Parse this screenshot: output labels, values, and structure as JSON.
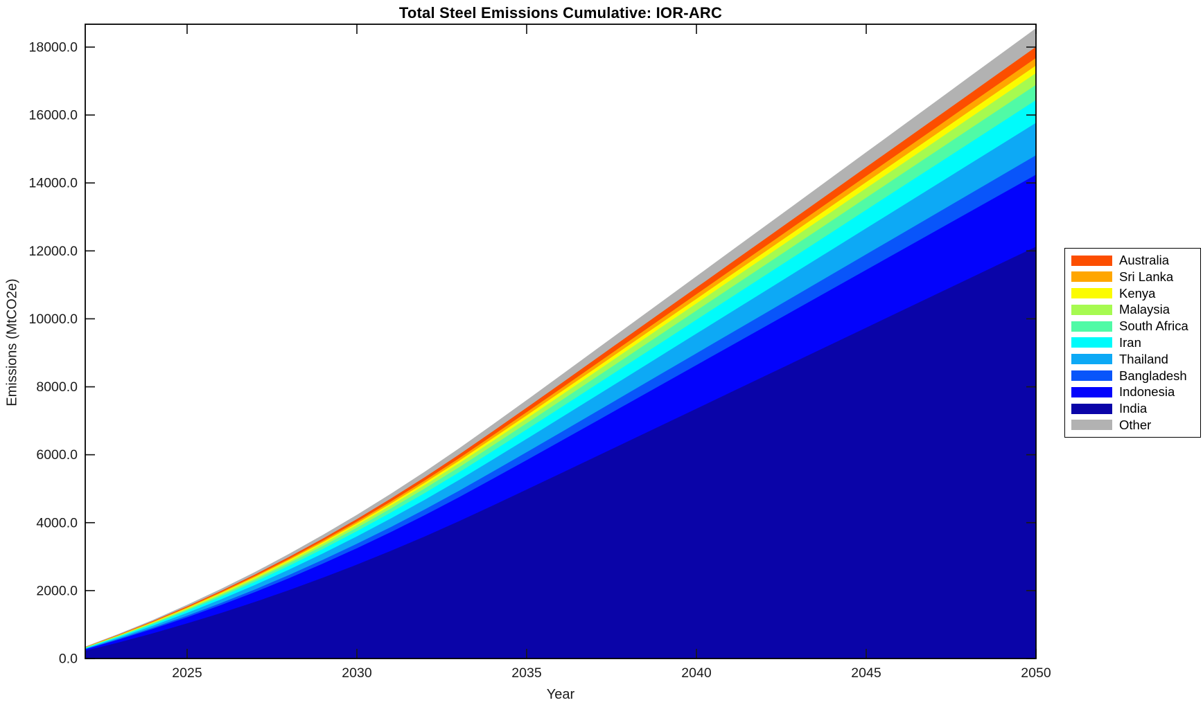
{
  "figure": {
    "title": "Total Steel Emissions Cumulative: IOR-ARC",
    "xlabel": "Year",
    "ylabel": "Emissions (MtCO2e)"
  },
  "chart_data": {
    "type": "area",
    "stacked": true,
    "title": "Total Steel Emissions Cumulative: IOR-ARC",
    "xlabel": "Year",
    "ylabel": "Emissions (MtCO2e)",
    "xlim": [
      2022,
      2050
    ],
    "ylim": [
      0,
      18672
    ],
    "grid": false,
    "legend_position": "right-outside",
    "xticks": [
      2025,
      2030,
      2035,
      2040,
      2045,
      2050
    ],
    "ytick_labels": [
      "0.0",
      "2000.0",
      "4000.0",
      "6000.0",
      "8000.0",
      "10000.0",
      "12000.0",
      "14000.0",
      "16000.0",
      "18000.0"
    ],
    "ytick_values": [
      0,
      2000,
      4000,
      6000,
      8000,
      10000,
      12000,
      14000,
      16000,
      18000
    ],
    "legend_order_top_to_bottom": [
      "Australia",
      "Sri Lanka",
      "Kenya",
      "Malaysia",
      "South Africa",
      "Iran",
      "Thailand",
      "Bangladesh",
      "Indonesia",
      "India",
      "Other"
    ],
    "years": [
      2022,
      2023,
      2024,
      2025,
      2026,
      2027,
      2028,
      2029,
      2030,
      2031,
      2032,
      2033,
      2034,
      2035,
      2036,
      2037,
      2038,
      2039,
      2040,
      2041,
      2042,
      2043,
      2044,
      2045,
      2046,
      2047,
      2048,
      2049,
      2050
    ],
    "series_bottom_to_top": [
      {
        "name": "India",
        "color": "#0A04A8",
        "values": [
          229,
          477,
          745,
          1033,
          1340,
          1666,
          2013,
          2379,
          2764,
          3170,
          3594,
          4039,
          4503,
          4973,
          5447,
          5924,
          6401,
          6878,
          7355,
          7832,
          8309,
          8786,
          9263,
          9740,
          10218,
          10695,
          11172,
          11649,
          12126
        ]
      },
      {
        "name": "Indonesia",
        "color": "#0303FC",
        "values": [
          40,
          83,
          130,
          180,
          234,
          291,
          351,
          415,
          483,
          553,
          628,
          705,
          786,
          868,
          951,
          1034,
          1118,
          1201,
          1284,
          1368,
          1451,
          1534,
          1617,
          1701,
          1784,
          1867,
          1951,
          2034,
          2117
        ]
      },
      {
        "name": "Bangladesh",
        "color": "#0955FA",
        "values": [
          11,
          22,
          35,
          49,
          63,
          78,
          95,
          112,
          130,
          149,
          169,
          190,
          212,
          234,
          256,
          278,
          301,
          323,
          346,
          368,
          390,
          413,
          435,
          458,
          480,
          502,
          525,
          547,
          570
        ]
      },
      {
        "name": "Thailand",
        "color": "#0DA9F5",
        "values": [
          18,
          38,
          59,
          81,
          106,
          131,
          159,
          187,
          218,
          250,
          283,
          318,
          355,
          392,
          429,
          467,
          504,
          542,
          580,
          617,
          655,
          692,
          730,
          768,
          805,
          843,
          880,
          918,
          956
        ]
      },
      {
        "name": "Iran",
        "color": "#00FBFB",
        "values": [
          13,
          26,
          41,
          57,
          74,
          92,
          111,
          132,
          153,
          176,
          199,
          224,
          249,
          275,
          302,
          328,
          355,
          381,
          407,
          434,
          460,
          487,
          513,
          540,
          566,
          592,
          619,
          645,
          672
        ]
      },
      {
        "name": "South Africa",
        "color": "#50FAA6",
        "values": [
          8,
          18,
          27,
          38,
          49,
          61,
          74,
          88,
          102,
          117,
          133,
          149,
          166,
          183,
          201,
          218,
          236,
          254,
          271,
          289,
          306,
          324,
          342,
          359,
          377,
          394,
          412,
          430,
          447
        ]
      },
      {
        "name": "Malaysia",
        "color": "#A6FA50",
        "values": [
          7,
          14,
          21,
          30,
          38,
          48,
          58,
          68,
          79,
          91,
          103,
          116,
          129,
          142,
          156,
          170,
          183,
          197,
          210,
          224,
          238,
          251,
          265,
          279,
          292,
          306,
          320,
          333,
          347
        ]
      },
      {
        "name": "Kenya",
        "color": "#FBFB00",
        "values": [
          4,
          9,
          14,
          19,
          25,
          31,
          37,
          44,
          51,
          58,
          66,
          74,
          83,
          91,
          100,
          109,
          118,
          126,
          135,
          144,
          153,
          161,
          170,
          179,
          188,
          196,
          205,
          214,
          223
        ]
      },
      {
        "name": "Sri Lanka",
        "color": "#FFA600",
        "values": [
          4,
          9,
          14,
          19,
          25,
          31,
          37,
          44,
          51,
          59,
          67,
          75,
          83,
          92,
          101,
          110,
          119,
          127,
          136,
          145,
          154,
          163,
          172,
          180,
          189,
          198,
          207,
          216,
          225
        ]
      },
      {
        "name": "Australia",
        "color": "#FC4E00",
        "values": [
          6,
          13,
          20,
          28,
          36,
          45,
          54,
          64,
          74,
          85,
          96,
          108,
          121,
          133,
          146,
          159,
          171,
          184,
          197,
          210,
          223,
          235,
          248,
          261,
          274,
          286,
          299,
          312,
          325
        ]
      },
      {
        "name": "Other",
        "color": "#B2B2B2",
        "values": [
          10,
          22,
          34,
          47,
          61,
          75,
          91,
          108,
          125,
          144,
          163,
          183,
          204,
          225,
          247,
          268,
          290,
          312,
          333,
          355,
          376,
          398,
          420,
          441,
          463,
          484,
          506,
          528,
          549
        ]
      }
    ],
    "axis_color": "#1a1a1a",
    "frame_color": "#000000"
  }
}
